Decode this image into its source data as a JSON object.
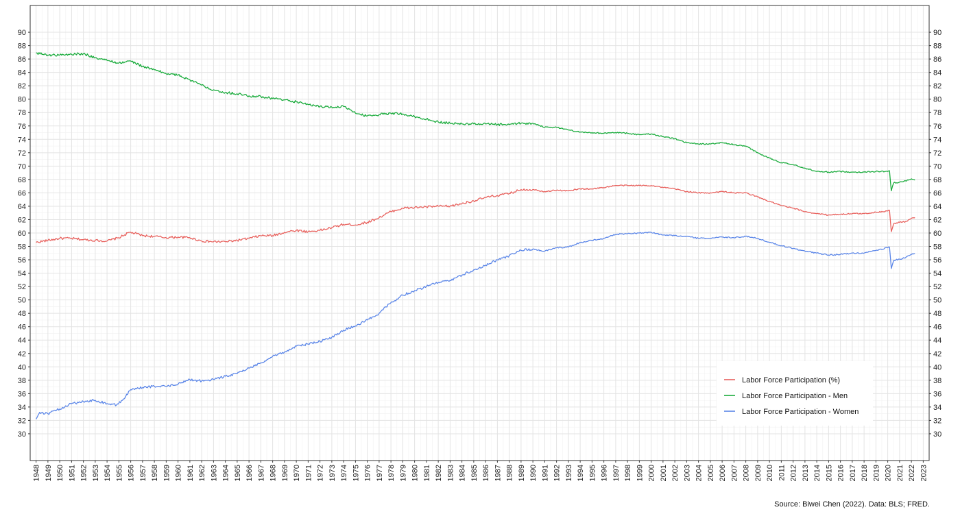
{
  "source_note": "Source: Biwei Chen (2022). Data: BLS; FRED.",
  "chart_data": {
    "type": "line",
    "title": "",
    "xlabel": "",
    "ylabel": "",
    "xlim": [
      1948,
      2023
    ],
    "ylim": [
      30,
      90
    ],
    "x_ticks": [
      1948,
      1949,
      1950,
      1951,
      1952,
      1953,
      1954,
      1955,
      1956,
      1957,
      1958,
      1959,
      1960,
      1961,
      1962,
      1963,
      1964,
      1965,
      1966,
      1967,
      1968,
      1969,
      1970,
      1971,
      1972,
      1973,
      1974,
      1975,
      1976,
      1977,
      1978,
      1979,
      1980,
      1981,
      1982,
      1983,
      1984,
      1985,
      1986,
      1987,
      1988,
      1989,
      1990,
      1991,
      1992,
      1993,
      1994,
      1995,
      1996,
      1997,
      1998,
      1999,
      2000,
      2001,
      2002,
      2003,
      2004,
      2005,
      2006,
      2007,
      2008,
      2009,
      2010,
      2011,
      2012,
      2013,
      2014,
      2015,
      2016,
      2017,
      2018,
      2019,
      2020,
      2021,
      2022,
      2023
    ],
    "y_ticks": [
      30,
      32,
      34,
      36,
      38,
      40,
      42,
      44,
      46,
      48,
      50,
      52,
      54,
      56,
      58,
      60,
      62,
      64,
      66,
      68,
      70,
      72,
      74,
      76,
      78,
      80,
      82,
      84,
      86,
      88,
      90
    ],
    "grid": true,
    "legend": "bottom-right",
    "series": [
      {
        "name": "Labor Force Participation (%)",
        "color": "#e8615d",
        "points": [
          [
            1948.0,
            58.6
          ],
          [
            1949.0,
            58.9
          ],
          [
            1950.0,
            59.2
          ],
          [
            1951.0,
            59.2
          ],
          [
            1952.0,
            59.0
          ],
          [
            1953.0,
            58.9
          ],
          [
            1954.0,
            58.8
          ],
          [
            1955.0,
            59.3
          ],
          [
            1955.9,
            60.1
          ],
          [
            1956.5,
            59.9
          ],
          [
            1957.0,
            59.6
          ],
          [
            1958.0,
            59.5
          ],
          [
            1959.0,
            59.3
          ],
          [
            1960.0,
            59.4
          ],
          [
            1961.0,
            59.3
          ],
          [
            1962.0,
            58.8
          ],
          [
            1963.0,
            58.7
          ],
          [
            1964.0,
            58.7
          ],
          [
            1965.0,
            58.9
          ],
          [
            1966.0,
            59.2
          ],
          [
            1967.0,
            59.6
          ],
          [
            1968.0,
            59.6
          ],
          [
            1969.0,
            60.1
          ],
          [
            1970.0,
            60.4
          ],
          [
            1971.0,
            60.2
          ],
          [
            1972.0,
            60.4
          ],
          [
            1973.0,
            60.8
          ],
          [
            1974.0,
            61.3
          ],
          [
            1975.0,
            61.2
          ],
          [
            1976.0,
            61.6
          ],
          [
            1977.0,
            62.3
          ],
          [
            1978.0,
            63.2
          ],
          [
            1979.0,
            63.7
          ],
          [
            1980.0,
            63.8
          ],
          [
            1981.0,
            63.9
          ],
          [
            1982.0,
            64.0
          ],
          [
            1983.0,
            64.0
          ],
          [
            1984.0,
            64.4
          ],
          [
            1985.0,
            64.8
          ],
          [
            1986.0,
            65.3
          ],
          [
            1987.0,
            65.6
          ],
          [
            1988.0,
            65.9
          ],
          [
            1989.0,
            66.5
          ],
          [
            1990.0,
            66.5
          ],
          [
            1991.0,
            66.2
          ],
          [
            1992.0,
            66.4
          ],
          [
            1993.0,
            66.3
          ],
          [
            1994.0,
            66.6
          ],
          [
            1995.0,
            66.6
          ],
          [
            1996.0,
            66.8
          ],
          [
            1997.0,
            67.1
          ],
          [
            1998.0,
            67.1
          ],
          [
            1999.0,
            67.1
          ],
          [
            2000.0,
            67.1
          ],
          [
            2001.0,
            66.8
          ],
          [
            2002.0,
            66.6
          ],
          [
            2003.0,
            66.2
          ],
          [
            2004.0,
            66.0
          ],
          [
            2005.0,
            66.0
          ],
          [
            2006.0,
            66.2
          ],
          [
            2007.0,
            66.0
          ],
          [
            2008.0,
            66.0
          ],
          [
            2009.0,
            65.4
          ],
          [
            2010.0,
            64.7
          ],
          [
            2011.0,
            64.1
          ],
          [
            2012.0,
            63.7
          ],
          [
            2013.0,
            63.2
          ],
          [
            2014.0,
            62.9
          ],
          [
            2015.0,
            62.7
          ],
          [
            2016.0,
            62.8
          ],
          [
            2017.0,
            62.9
          ],
          [
            2018.0,
            62.9
          ],
          [
            2019.0,
            63.1
          ],
          [
            2020.0,
            63.3
          ],
          [
            2020.15,
            63.4
          ],
          [
            2020.3,
            60.2
          ],
          [
            2020.5,
            61.4
          ],
          [
            2021.0,
            61.6
          ],
          [
            2021.5,
            61.7
          ],
          [
            2022.0,
            62.2
          ],
          [
            2022.3,
            62.3
          ]
        ]
      },
      {
        "name": "Labor Force Participation - Men",
        "color": "#1aab3c",
        "points": [
          [
            1948.0,
            86.9
          ],
          [
            1949.0,
            86.6
          ],
          [
            1950.0,
            86.6
          ],
          [
            1951.0,
            86.7
          ],
          [
            1952.0,
            86.8
          ],
          [
            1953.0,
            86.2
          ],
          [
            1954.0,
            85.8
          ],
          [
            1955.0,
            85.4
          ],
          [
            1956.0,
            85.7
          ],
          [
            1957.0,
            84.9
          ],
          [
            1958.0,
            84.4
          ],
          [
            1959.0,
            83.8
          ],
          [
            1960.0,
            83.6
          ],
          [
            1961.0,
            82.9
          ],
          [
            1962.0,
            82.1
          ],
          [
            1963.0,
            81.4
          ],
          [
            1964.0,
            81.0
          ],
          [
            1965.0,
            80.8
          ],
          [
            1966.0,
            80.5
          ],
          [
            1967.0,
            80.4
          ],
          [
            1968.0,
            80.1
          ],
          [
            1969.0,
            79.9
          ],
          [
            1970.0,
            79.6
          ],
          [
            1971.0,
            79.2
          ],
          [
            1972.0,
            78.9
          ],
          [
            1973.0,
            78.8
          ],
          [
            1974.0,
            78.9
          ],
          [
            1975.0,
            77.9
          ],
          [
            1976.0,
            77.5
          ],
          [
            1977.0,
            77.7
          ],
          [
            1978.0,
            77.9
          ],
          [
            1979.0,
            77.8
          ],
          [
            1980.0,
            77.4
          ],
          [
            1981.0,
            77.0
          ],
          [
            1982.0,
            76.6
          ],
          [
            1983.0,
            76.4
          ],
          [
            1984.0,
            76.3
          ],
          [
            1985.0,
            76.3
          ],
          [
            1986.0,
            76.3
          ],
          [
            1987.0,
            76.2
          ],
          [
            1988.0,
            76.2
          ],
          [
            1989.0,
            76.4
          ],
          [
            1990.0,
            76.4
          ],
          [
            1991.0,
            75.8
          ],
          [
            1992.0,
            75.8
          ],
          [
            1993.0,
            75.4
          ],
          [
            1994.0,
            75.1
          ],
          [
            1995.0,
            75.0
          ],
          [
            1996.0,
            74.9
          ],
          [
            1997.0,
            75.0
          ],
          [
            1998.0,
            74.9
          ],
          [
            1999.0,
            74.7
          ],
          [
            2000.0,
            74.8
          ],
          [
            2001.0,
            74.4
          ],
          [
            2002.0,
            74.1
          ],
          [
            2003.0,
            73.5
          ],
          [
            2004.0,
            73.3
          ],
          [
            2005.0,
            73.3
          ],
          [
            2006.0,
            73.5
          ],
          [
            2007.0,
            73.2
          ],
          [
            2008.0,
            73.0
          ],
          [
            2009.0,
            72.0
          ],
          [
            2010.0,
            71.2
          ],
          [
            2011.0,
            70.5
          ],
          [
            2012.0,
            70.2
          ],
          [
            2013.0,
            69.7
          ],
          [
            2014.0,
            69.2
          ],
          [
            2015.0,
            69.1
          ],
          [
            2016.0,
            69.2
          ],
          [
            2017.0,
            69.1
          ],
          [
            2018.0,
            69.1
          ],
          [
            2019.0,
            69.2
          ],
          [
            2020.0,
            69.2
          ],
          [
            2020.15,
            69.3
          ],
          [
            2020.3,
            66.3
          ],
          [
            2020.5,
            67.5
          ],
          [
            2021.0,
            67.6
          ],
          [
            2021.5,
            67.8
          ],
          [
            2022.0,
            68.1
          ],
          [
            2022.3,
            67.9
          ]
        ]
      },
      {
        "name": "Labor Force Participation - Women",
        "color": "#5b86e8",
        "points": [
          [
            1948.0,
            32.2
          ],
          [
            1948.3,
            33.2
          ],
          [
            1949.0,
            33.0
          ],
          [
            1950.0,
            33.7
          ],
          [
            1951.0,
            34.5
          ],
          [
            1952.0,
            34.8
          ],
          [
            1953.0,
            35.0
          ],
          [
            1954.0,
            34.5
          ],
          [
            1954.8,
            34.3
          ],
          [
            1955.3,
            35.0
          ],
          [
            1956.0,
            36.6
          ],
          [
            1957.0,
            36.9
          ],
          [
            1958.0,
            37.1
          ],
          [
            1959.0,
            37.1
          ],
          [
            1960.0,
            37.4
          ],
          [
            1961.0,
            38.1
          ],
          [
            1962.0,
            37.9
          ],
          [
            1963.0,
            38.1
          ],
          [
            1964.0,
            38.6
          ],
          [
            1965.0,
            39.0
          ],
          [
            1966.0,
            39.8
          ],
          [
            1967.0,
            40.6
          ],
          [
            1968.0,
            41.6
          ],
          [
            1969.0,
            42.2
          ],
          [
            1970.0,
            43.1
          ],
          [
            1971.0,
            43.4
          ],
          [
            1972.0,
            43.8
          ],
          [
            1973.0,
            44.4
          ],
          [
            1974.0,
            45.5
          ],
          [
            1975.0,
            46.1
          ],
          [
            1976.0,
            47.0
          ],
          [
            1977.0,
            48.0
          ],
          [
            1978.0,
            49.6
          ],
          [
            1979.0,
            50.7
          ],
          [
            1980.0,
            51.4
          ],
          [
            1981.0,
            52.0
          ],
          [
            1982.0,
            52.6
          ],
          [
            1983.0,
            52.9
          ],
          [
            1984.0,
            53.7
          ],
          [
            1985.0,
            54.5
          ],
          [
            1986.0,
            55.2
          ],
          [
            1987.0,
            56.0
          ],
          [
            1988.0,
            56.6
          ],
          [
            1989.0,
            57.4
          ],
          [
            1990.0,
            57.6
          ],
          [
            1991.0,
            57.3
          ],
          [
            1992.0,
            57.8
          ],
          [
            1993.0,
            57.9
          ],
          [
            1994.0,
            58.6
          ],
          [
            1995.0,
            58.9
          ],
          [
            1996.0,
            59.2
          ],
          [
            1997.0,
            59.8
          ],
          [
            1998.0,
            59.9
          ],
          [
            1999.0,
            60.0
          ],
          [
            2000.0,
            60.1
          ],
          [
            2001.0,
            59.7
          ],
          [
            2002.0,
            59.6
          ],
          [
            2003.0,
            59.5
          ],
          [
            2004.0,
            59.2
          ],
          [
            2005.0,
            59.2
          ],
          [
            2006.0,
            59.4
          ],
          [
            2007.0,
            59.3
          ],
          [
            2008.0,
            59.5
          ],
          [
            2009.0,
            59.2
          ],
          [
            2010.0,
            58.6
          ],
          [
            2011.0,
            58.1
          ],
          [
            2012.0,
            57.7
          ],
          [
            2013.0,
            57.3
          ],
          [
            2014.0,
            57.0
          ],
          [
            2015.0,
            56.7
          ],
          [
            2016.0,
            56.8
          ],
          [
            2017.0,
            57.0
          ],
          [
            2018.0,
            57.0
          ],
          [
            2019.0,
            57.4
          ],
          [
            2020.0,
            57.8
          ],
          [
            2020.15,
            57.9
          ],
          [
            2020.3,
            54.7
          ],
          [
            2020.5,
            55.9
          ],
          [
            2021.0,
            56.1
          ],
          [
            2021.5,
            56.3
          ],
          [
            2022.0,
            56.8
          ],
          [
            2022.3,
            56.9
          ]
        ]
      }
    ]
  }
}
